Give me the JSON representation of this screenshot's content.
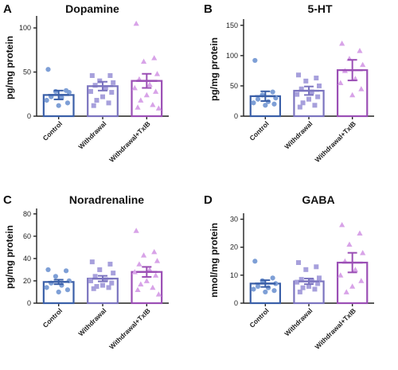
{
  "chart_data": [
    {
      "panel": "A",
      "title": "Dopamine",
      "type": "bar",
      "ylabel": "pg/mg protein",
      "ylim": [
        0,
        110
      ],
      "yticks": [
        0,
        50,
        100
      ],
      "categories": [
        "Control",
        "Withdrawal",
        "Withdrawal+TxIB"
      ],
      "colors": [
        "#3a5fa8",
        "#7b74bf",
        "#9b4fb5"
      ],
      "marker_colors": [
        "#7e9fd6",
        "#a7a0dc",
        "#d8a3e8"
      ],
      "markers": [
        "circle",
        "square",
        "triangle"
      ],
      "means": [
        24,
        34,
        40
      ],
      "sem": [
        5,
        5,
        8
      ],
      "points": [
        [
          53,
          29,
          28,
          27,
          22,
          21,
          18,
          15,
          12
        ],
        [
          46,
          46,
          40,
          38,
          35,
          32,
          28,
          27,
          22,
          18,
          15,
          12
        ],
        [
          105,
          66,
          62,
          48,
          42,
          36,
          32,
          28,
          24,
          18,
          13,
          10,
          9
        ]
      ]
    },
    {
      "panel": "B",
      "title": "5-HT",
      "type": "bar",
      "ylabel": "pg/mg protein",
      "ylim": [
        0,
        155
      ],
      "yticks": [
        0,
        50,
        100,
        150
      ],
      "categories": [
        "Control",
        "Withdrawal",
        "Withdrawal+TxIB"
      ],
      "colors": [
        "#3a5fa8",
        "#7b74bf",
        "#9b4fb5"
      ],
      "marker_colors": [
        "#7e9fd6",
        "#a7a0dc",
        "#d8a3e8"
      ],
      "markers": [
        "circle",
        "square",
        "triangle"
      ],
      "means": [
        33,
        42,
        76
      ],
      "sem": [
        8,
        7,
        17
      ],
      "points": [
        [
          92,
          40,
          35,
          30,
          28,
          24,
          22,
          20,
          18
        ],
        [
          68,
          63,
          58,
          50,
          45,
          40,
          36,
          32,
          28,
          22,
          18,
          15
        ],
        [
          120,
          108,
          95,
          85,
          75,
          62,
          55,
          45,
          35
        ]
      ]
    },
    {
      "panel": "C",
      "title": "Noradrenaline",
      "type": "bar",
      "ylabel": "pg/mg protein",
      "ylim": [
        0,
        82
      ],
      "yticks": [
        0,
        20,
        40,
        60,
        80
      ],
      "categories": [
        "Control",
        "Withdrawal",
        "Withdrawal+TxIB"
      ],
      "colors": [
        "#3a5fa8",
        "#7b74bf",
        "#9b4fb5"
      ],
      "marker_colors": [
        "#7e9fd6",
        "#a7a0dc",
        "#d8a3e8"
      ],
      "markers": [
        "circle",
        "square",
        "triangle"
      ],
      "means": [
        19,
        22,
        28
      ],
      "sem": [
        2,
        2.5,
        4.5
      ],
      "points": [
        [
          30,
          29,
          24,
          20,
          18,
          16,
          14,
          12,
          10
        ],
        [
          37,
          35,
          30,
          27,
          24,
          21,
          20,
          18,
          16,
          15,
          14,
          13
        ],
        [
          65,
          46,
          43,
          38,
          35,
          30,
          28,
          25,
          20,
          17,
          14,
          12,
          8
        ]
      ]
    },
    {
      "panel": "D",
      "title": "GABA",
      "type": "bar",
      "ylabel": "nmol/mg protein",
      "ylim": [
        0,
        31
      ],
      "yticks": [
        0,
        10,
        20,
        30
      ],
      "categories": [
        "Control",
        "Withdrawal",
        "Withdrawal+TxIB"
      ],
      "colors": [
        "#3a5fa8",
        "#7b74bf",
        "#9b4fb5"
      ],
      "marker_colors": [
        "#7e9fd6",
        "#a7a0dc",
        "#d8a3e8"
      ],
      "markers": [
        "circle",
        "square",
        "triangle"
      ],
      "means": [
        7,
        7.8,
        14.5
      ],
      "sem": [
        1.2,
        1,
        3.5
      ],
      "points": [
        [
          15,
          9,
          8,
          7,
          6,
          5.5,
          5,
          4.5,
          4
        ],
        [
          14.5,
          13,
          12,
          9,
          8.5,
          8,
          7.5,
          7,
          6,
          5.5,
          5,
          4
        ],
        [
          28,
          25,
          21,
          18,
          15,
          12,
          10,
          8,
          6,
          4
        ]
      ]
    }
  ]
}
